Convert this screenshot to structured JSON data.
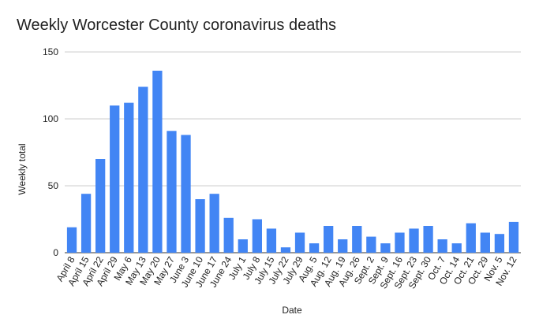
{
  "chart_data": {
    "type": "bar",
    "title": "Weekly Worcester County coronavirus deaths",
    "xlabel": "Date",
    "ylabel": "Weekly total",
    "ylim": [
      0,
      150
    ],
    "yticks": [
      0,
      50,
      100,
      150
    ],
    "grid": true,
    "legend": "none",
    "bar_color": "#4285f4",
    "categories": [
      "April 8",
      "April 15",
      "April 22",
      "April 29",
      "May 6",
      "May 13",
      "May 20",
      "May 27",
      "June 3",
      "June 10",
      "June 17",
      "June 24",
      "July 1",
      "July 8",
      "July 15",
      "July 22",
      "July 29",
      "Aug. 5",
      "Aug. 12",
      "Aug. 19",
      "Aug. 26",
      "Sept. 2",
      "Sept. 9",
      "Sept. 16",
      "Sept. 23",
      "Sept. 30",
      "Oct. 7",
      "Oct. 14",
      "Oct. 21",
      "Oct. 29",
      "Nov. 5",
      "Nov. 12"
    ],
    "values": [
      19,
      44,
      70,
      110,
      112,
      124,
      136,
      91,
      88,
      40,
      44,
      26,
      10,
      25,
      18,
      4,
      15,
      7,
      20,
      10,
      20,
      12,
      7,
      15,
      18,
      20,
      10,
      7,
      22,
      15,
      14,
      23
    ]
  }
}
